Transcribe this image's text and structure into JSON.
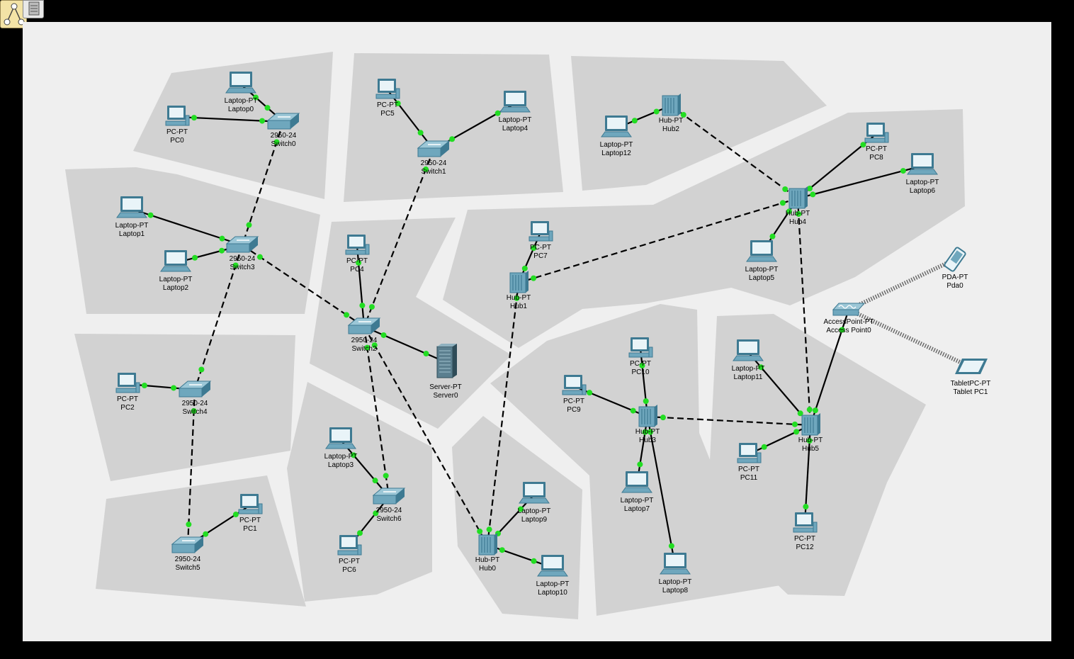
{
  "colors": {
    "canvas": "#efefef",
    "cluster": "#d2d2d2",
    "link": "#000000",
    "port": "#22dd22",
    "device_body": "#6fa7bd",
    "device_dark": "#3e7a92"
  },
  "toolbar": {
    "logical_icon": "logical-view-icon",
    "top_icon": "device-tray-icon"
  },
  "devices": [
    {
      "id": "pc0",
      "kind": "pc",
      "model": "PC-PT",
      "name": "PC0"
    },
    {
      "id": "laptop0",
      "kind": "laptop",
      "model": "Laptop-PT",
      "name": "Laptop0"
    },
    {
      "id": "switch0",
      "kind": "switch",
      "model": "2950-24",
      "name": "Switch0"
    },
    {
      "id": "pc5",
      "kind": "pc",
      "model": "PC-PT",
      "name": "PC5"
    },
    {
      "id": "laptop4",
      "kind": "laptop",
      "model": "Laptop-PT",
      "name": "Laptop4"
    },
    {
      "id": "switch1",
      "kind": "switch",
      "model": "2950-24",
      "name": "Switch1"
    },
    {
      "id": "laptop12",
      "kind": "laptop",
      "model": "Laptop-PT",
      "name": "Laptop12"
    },
    {
      "id": "hub2",
      "kind": "hub",
      "model": "Hub-PT",
      "name": "Hub2"
    },
    {
      "id": "pc8",
      "kind": "pc",
      "model": "PC-PT",
      "name": "PC8"
    },
    {
      "id": "laptop6",
      "kind": "laptop",
      "model": "Laptop-PT",
      "name": "Laptop6"
    },
    {
      "id": "hub4",
      "kind": "hub",
      "model": "Hub-PT",
      "name": "Hub4"
    },
    {
      "id": "laptop5",
      "kind": "laptop",
      "model": "Laptop-PT",
      "name": "Laptop5"
    },
    {
      "id": "laptop1",
      "kind": "laptop",
      "model": "Laptop-PT",
      "name": "Laptop1"
    },
    {
      "id": "laptop2",
      "kind": "laptop",
      "model": "Laptop-PT",
      "name": "Laptop2"
    },
    {
      "id": "switch3",
      "kind": "switch",
      "model": "2950-24",
      "name": "Switch3"
    },
    {
      "id": "pc4",
      "kind": "pc",
      "model": "PC-PT",
      "name": "PC4"
    },
    {
      "id": "switch2",
      "kind": "switch",
      "model": "2950-24",
      "name": "Switch2"
    },
    {
      "id": "server0",
      "kind": "server",
      "model": "Server-PT",
      "name": "Server0"
    },
    {
      "id": "pc7",
      "kind": "pc",
      "model": "PC-PT",
      "name": "PC7"
    },
    {
      "id": "hub1",
      "kind": "hub",
      "model": "Hub-PT",
      "name": "Hub1"
    },
    {
      "id": "pda0",
      "kind": "pda",
      "model": "PDA-PT",
      "name": "Pda0"
    },
    {
      "id": "ap0",
      "kind": "ap",
      "model": "AccessPoint-PT",
      "name": "Access Point0"
    },
    {
      "id": "tablet1",
      "kind": "tablet",
      "model": "TabletPC-PT",
      "name": "Tablet PC1"
    },
    {
      "id": "pc2",
      "kind": "pc",
      "model": "PC-PT",
      "name": "PC2"
    },
    {
      "id": "switch4",
      "kind": "switch",
      "model": "2950-24",
      "name": "Switch4"
    },
    {
      "id": "pc10",
      "kind": "pc",
      "model": "PC-PT",
      "name": "PC10"
    },
    {
      "id": "pc9",
      "kind": "pc",
      "model": "PC-PT",
      "name": "PC9"
    },
    {
      "id": "hub3",
      "kind": "hub",
      "model": "Hub-PT",
      "name": "Hub3"
    },
    {
      "id": "laptop7",
      "kind": "laptop",
      "model": "Laptop-PT",
      "name": "Laptop7"
    },
    {
      "id": "laptop8",
      "kind": "laptop",
      "model": "Laptop-PT",
      "name": "Laptop8"
    },
    {
      "id": "laptop11",
      "kind": "laptop",
      "model": "Laptop-PT",
      "name": "Laptop11"
    },
    {
      "id": "hub5",
      "kind": "hub",
      "model": "Hub-PT",
      "name": "Hub5"
    },
    {
      "id": "pc11",
      "kind": "pc",
      "model": "PC-PT",
      "name": "PC11"
    },
    {
      "id": "pc12",
      "kind": "pc",
      "model": "PC-PT",
      "name": "PC12"
    },
    {
      "id": "laptop3",
      "kind": "laptop",
      "model": "Laptop-PT",
      "name": "Laptop3"
    },
    {
      "id": "switch6",
      "kind": "switch",
      "model": "2950-24",
      "name": "Switch6"
    },
    {
      "id": "pc6",
      "kind": "pc",
      "model": "PC-PT",
      "name": "PC6"
    },
    {
      "id": "hub0",
      "kind": "hub",
      "model": "Hub-PT",
      "name": "Hub0"
    },
    {
      "id": "laptop9",
      "kind": "laptop",
      "model": "Laptop-PT",
      "name": "Laptop9"
    },
    {
      "id": "laptop10",
      "kind": "laptop",
      "model": "Laptop-PT",
      "name": "Laptop10"
    },
    {
      "id": "switch5",
      "kind": "switch",
      "model": "2950-24",
      "name": "Switch5"
    },
    {
      "id": "pc1",
      "kind": "pc",
      "model": "PC-PT",
      "name": "PC1"
    }
  ],
  "links": [
    {
      "from": "pc0",
      "to": "switch0",
      "type": "straight"
    },
    {
      "from": "laptop0",
      "to": "switch0",
      "type": "straight"
    },
    {
      "from": "switch0",
      "to": "switch3",
      "type": "cross"
    },
    {
      "from": "pc5",
      "to": "switch1",
      "type": "straight"
    },
    {
      "from": "laptop4",
      "to": "switch1",
      "type": "straight"
    },
    {
      "from": "switch1",
      "to": "switch2",
      "type": "cross"
    },
    {
      "from": "laptop12",
      "to": "hub2",
      "type": "straight"
    },
    {
      "from": "hub2",
      "to": "hub4",
      "type": "cross"
    },
    {
      "from": "pc8",
      "to": "hub4",
      "type": "straight"
    },
    {
      "from": "laptop6",
      "to": "hub4",
      "type": "straight"
    },
    {
      "from": "laptop5",
      "to": "hub4",
      "type": "straight"
    },
    {
      "from": "hub4",
      "to": "hub1",
      "type": "cross"
    },
    {
      "from": "hub4",
      "to": "hub5",
      "type": "cross"
    },
    {
      "from": "laptop1",
      "to": "switch3",
      "type": "straight"
    },
    {
      "from": "laptop2",
      "to": "switch3",
      "type": "straight"
    },
    {
      "from": "switch3",
      "to": "switch2",
      "type": "cross"
    },
    {
      "from": "switch3",
      "to": "switch4",
      "type": "cross"
    },
    {
      "from": "pc4",
      "to": "switch2",
      "type": "straight"
    },
    {
      "from": "server0",
      "to": "switch2",
      "type": "straight"
    },
    {
      "from": "switch2",
      "to": "switch6",
      "type": "cross"
    },
    {
      "from": "switch2",
      "to": "hub0",
      "type": "cross"
    },
    {
      "from": "pc7",
      "to": "hub1",
      "type": "straight"
    },
    {
      "from": "hub1",
      "to": "hub0",
      "type": "cross"
    },
    {
      "from": "pc2",
      "to": "switch4",
      "type": "straight"
    },
    {
      "from": "switch4",
      "to": "switch5",
      "type": "cross"
    },
    {
      "from": "pc1",
      "to": "switch5",
      "type": "straight"
    },
    {
      "from": "laptop3",
      "to": "switch6",
      "type": "straight"
    },
    {
      "from": "pc6",
      "to": "switch6",
      "type": "straight"
    },
    {
      "from": "laptop9",
      "to": "hub0",
      "type": "straight"
    },
    {
      "from": "laptop10",
      "to": "hub0",
      "type": "straight"
    },
    {
      "from": "pc10",
      "to": "hub3",
      "type": "straight"
    },
    {
      "from": "pc9",
      "to": "hub3",
      "type": "straight"
    },
    {
      "from": "laptop7",
      "to": "hub3",
      "type": "straight"
    },
    {
      "from": "laptop8",
      "to": "hub3",
      "type": "straight"
    },
    {
      "from": "hub3",
      "to": "hub5",
      "type": "cross"
    },
    {
      "from": "laptop11",
      "to": "hub5",
      "type": "straight"
    },
    {
      "from": "pc11",
      "to": "hub5",
      "type": "straight"
    },
    {
      "from": "pc12",
      "to": "hub5",
      "type": "straight"
    },
    {
      "from": "ap0",
      "to": "hub5",
      "type": "straight"
    },
    {
      "from": "ap0",
      "to": "pda0",
      "type": "wireless"
    },
    {
      "from": "ap0",
      "to": "tablet1",
      "type": "wireless"
    }
  ]
}
